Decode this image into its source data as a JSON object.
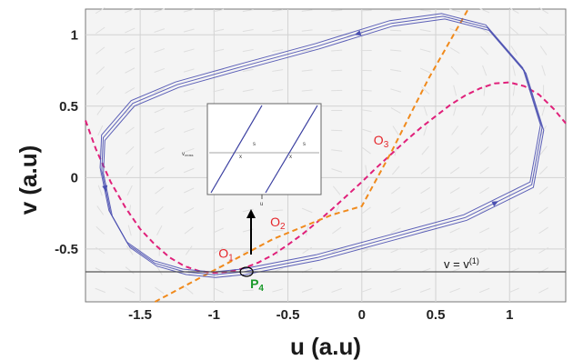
{
  "chart_data": {
    "type": "line",
    "xlabel": "u (a.u)",
    "ylabel": "v (a.u)",
    "xlim": [
      -1.87,
      1.38
    ],
    "ylim": [
      -0.87,
      1.18
    ],
    "xticks": [
      -1.5,
      -1,
      -0.5,
      0,
      0.5,
      1
    ],
    "xtick_labels": [
      "-1.5",
      "-1",
      "-0.5",
      "0",
      "0.5",
      "1"
    ],
    "yticks": [
      -0.5,
      0,
      0.5,
      1
    ],
    "ytick_labels": [
      "-0.5",
      "0",
      "0.5",
      "1"
    ],
    "grid": true,
    "colors": {
      "cubic_nullcline": "#e0207a",
      "linear_nullcline": "#f08a1c",
      "trajectory": "#4a4fb0",
      "annotation": "#e5262b",
      "fixed_point_label": "#1a9a2a",
      "reference_line": "#555555"
    },
    "series": [
      {
        "name": "",
        "style": "dashed",
        "color": "#e0207a",
        "x": [
          -1.87,
          -1.8,
          -1.7,
          -1.6,
          -1.5,
          -1.4,
          -1.3,
          -1.2,
          -1.1,
          -1.0,
          -0.9,
          -0.8,
          -0.7,
          -0.6,
          -0.5,
          -0.4,
          -0.3,
          -0.2,
          -0.1,
          0.0,
          0.1,
          0.2,
          0.3,
          0.4,
          0.5,
          0.6,
          0.7,
          0.8,
          0.9,
          1.0,
          1.1,
          1.2,
          1.3,
          1.38
        ],
        "y": [
          0.4,
          0.2,
          -0.03,
          -0.21,
          -0.36,
          -0.47,
          -0.56,
          -0.62,
          -0.655,
          -0.667,
          -0.66,
          -0.635,
          -0.595,
          -0.54,
          -0.47,
          -0.395,
          -0.31,
          -0.22,
          -0.125,
          -0.03,
          0.07,
          0.165,
          0.26,
          0.35,
          0.43,
          0.51,
          0.575,
          0.625,
          0.66,
          0.667,
          0.64,
          0.58,
          0.48,
          0.38
        ]
      },
      {
        "name": "",
        "style": "dashed",
        "color": "#f08a1c",
        "x": [
          -1.4,
          -1.0,
          -0.6,
          -0.2,
          0.0,
          0.2,
          0.45,
          0.72
        ],
        "y": [
          -0.87,
          -0.65,
          -0.43,
          -0.26,
          -0.2,
          0.18,
          0.69,
          1.18
        ]
      },
      {
        "name": "",
        "style": "solid",
        "color": "#4a4fb0",
        "x": [
          -0.8,
          -0.3,
          0.2,
          0.7,
          1.15,
          1.22,
          1.1,
          0.85,
          0.55,
          0.2,
          -0.3,
          -0.8,
          -1.25,
          -1.55,
          -1.75,
          -1.76,
          -1.7,
          -1.58,
          -1.4,
          -1.2,
          -1.0,
          -0.8
        ],
        "y": [
          -0.66,
          -0.56,
          -0.42,
          -0.28,
          -0.05,
          0.35,
          0.75,
          1.05,
          1.13,
          1.08,
          0.92,
          0.78,
          0.65,
          0.52,
          0.28,
          0.05,
          -0.25,
          -0.47,
          -0.6,
          -0.66,
          -0.68,
          -0.66
        ]
      }
    ],
    "annotations": [
      {
        "text": "O",
        "sub": "1",
        "x": -0.97,
        "y": -0.56
      },
      {
        "text": "O",
        "sub": "2",
        "x": -0.62,
        "y": -0.34
      },
      {
        "text": "O",
        "sub": "3",
        "x": 0.08,
        "y": 0.23
      }
    ],
    "fixed_point": {
      "text": "P",
      "sub": "4",
      "x": -0.78,
      "y": -0.66
    },
    "reference_line": {
      "y": -0.66,
      "label": "v = v",
      "label_sup": "(1)"
    },
    "inset": {
      "ylabel": "v",
      "ysub": "cross",
      "xlabel": "u",
      "marks": [
        "s",
        "s"
      ],
      "xmarks": [
        "x",
        "x"
      ]
    }
  }
}
